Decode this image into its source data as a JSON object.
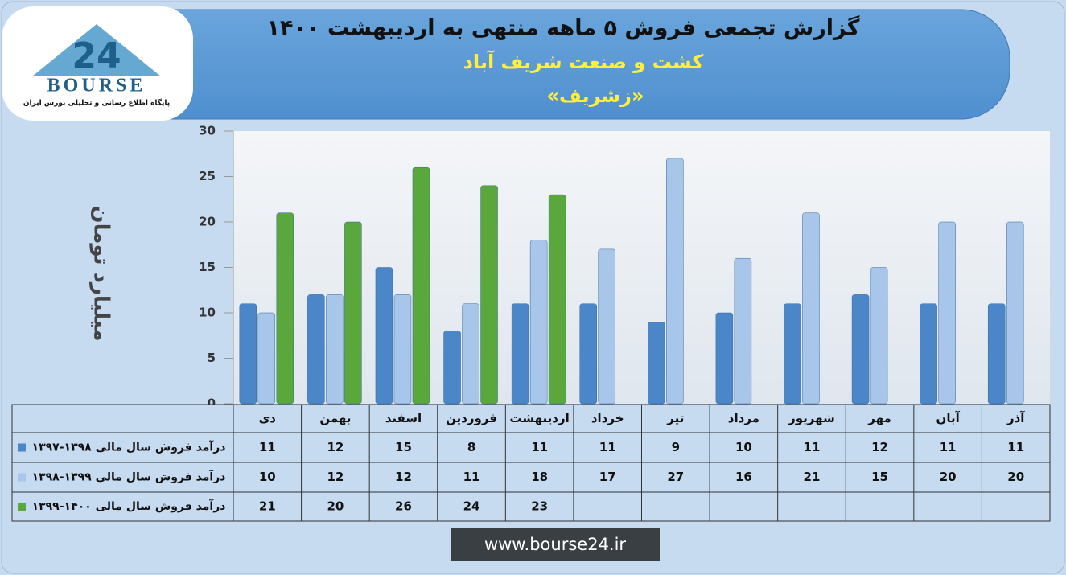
{
  "logo": {
    "mark": "24",
    "name": "BOURSE",
    "tagline": "پایگاه اطلاع رسانی و تحلیلی بورس ایران"
  },
  "footer": "www.bourse24.ir",
  "chart_data": {
    "type": "bar",
    "title": "گزارش تجمعی فروش ۵ ماهه منتهی به اردیبهشت ۱۴۰۰",
    "subtitle": "کشت و صنعت شریف آباد",
    "symbol": "«زشریف»",
    "y_label": "میلیارد تومان",
    "categories": [
      "دی",
      "بهمن",
      "اسفند",
      "فروردین",
      "اردیبهشت",
      "خرداد",
      "تیر",
      "مرداد",
      "شهریور",
      "مهر",
      "آبان",
      "آذر"
    ],
    "series": [
      {
        "name": "درآمد فروش سال مالی ۱۳۹۸-۱۳۹۷",
        "color": "#4a86c8",
        "values": [
          11,
          12,
          15,
          8,
          11,
          11,
          9,
          10,
          11,
          12,
          11,
          11
        ]
      },
      {
        "name": "درآمد فروش سال مالی ۱۳۹۹-۱۳۹۸",
        "color": "#a8c6ea",
        "values": [
          10,
          12,
          12,
          11,
          18,
          17,
          27,
          16,
          21,
          15,
          20,
          20
        ]
      },
      {
        "name": "درآمد فروش سال مالی ۱۴۰۰-۱۳۹۹",
        "color": "#5aa83c",
        "values": [
          21,
          20,
          26,
          24,
          23,
          null,
          null,
          null,
          null,
          null,
          null,
          null
        ]
      }
    ],
    "ylim": [
      0,
      30
    ],
    "yticks": [
      0,
      5,
      10,
      15,
      20,
      25,
      30
    ],
    "grid": false
  }
}
